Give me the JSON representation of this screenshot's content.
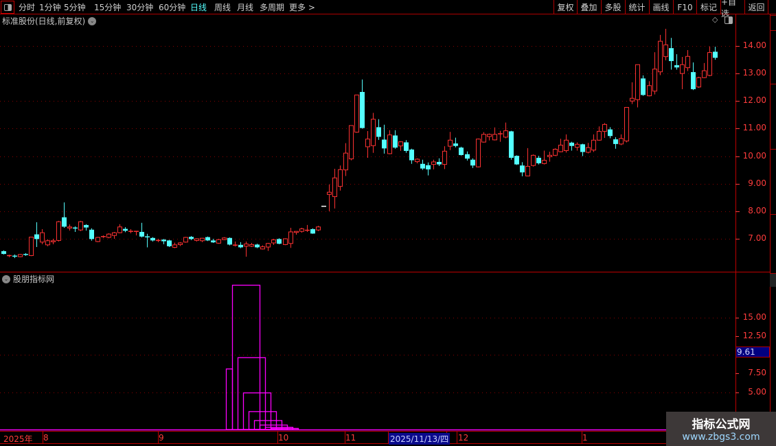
{
  "toolbar": {
    "periods": [
      "分时",
      "1分钟",
      "5分钟",
      "15分钟",
      "30分钟",
      "60分钟",
      "日线",
      "周线",
      "月线",
      "多周期",
      "更多 >"
    ],
    "active_period": "日线",
    "buttons": [
      "复权",
      "叠加",
      "多股",
      "统计",
      "画线",
      "F10",
      "标记",
      "+自选",
      "返回"
    ]
  },
  "main_panel": {
    "title": "标准股份(日线,前复权)",
    "price_ticks": [
      "14.00",
      "13.00",
      "12.00",
      "11.00",
      "10.00",
      "9.00",
      "8.00",
      "7.00"
    ]
  },
  "sub_panel": {
    "title": "股朋指标网",
    "ticks": [
      "15.00",
      "12.50",
      "7.50",
      "5.00"
    ],
    "current_value": "9.61"
  },
  "date_axis": {
    "labels": [
      "2025年",
      "8",
      "9",
      "10",
      "11",
      "12",
      "1"
    ],
    "highlight": "2025/11/13/四"
  },
  "watermark": {
    "line1": "指标公式网",
    "line2": "www.zbgs3.com"
  },
  "colors": {
    "up": "#ff3232",
    "down": "#54ffff",
    "indicator": "#ff00ff",
    "grid": "#8b0000",
    "axis": "#ff3c3c"
  },
  "chart_data": {
    "type": "candlestick",
    "ylim": [
      6.2,
      14.85
    ],
    "ohlc": [
      [
        6.55,
        6.58,
        6.43,
        6.45
      ],
      [
        6.37,
        6.42,
        6.33,
        6.39
      ],
      [
        6.37,
        6.43,
        6.3,
        6.36
      ],
      [
        6.35,
        6.45,
        6.33,
        6.43
      ],
      [
        6.43,
        6.48,
        6.38,
        6.42
      ],
      [
        6.39,
        7.06,
        6.37,
        7.06
      ],
      [
        7.16,
        7.6,
        6.7,
        6.99
      ],
      [
        6.88,
        7.35,
        6.8,
        7.22
      ],
      [
        6.78,
        6.98,
        6.73,
        6.93
      ],
      [
        6.89,
        7.0,
        6.8,
        6.93
      ],
      [
        6.94,
        7.65,
        6.9,
        7.62
      ],
      [
        7.78,
        8.32,
        7.4,
        7.44
      ],
      [
        7.39,
        7.52,
        7.3,
        7.43
      ],
      [
        7.39,
        7.45,
        7.25,
        7.37
      ],
      [
        7.32,
        7.65,
        7.28,
        7.62
      ],
      [
        7.5,
        7.53,
        7.3,
        7.41
      ],
      [
        7.33,
        7.38,
        6.93,
        6.99
      ],
      [
        6.9,
        7.07,
        6.88,
        7.05
      ],
      [
        7.07,
        7.12,
        7.03,
        7.08
      ],
      [
        7.05,
        7.2,
        7.02,
        7.17
      ],
      [
        7.12,
        7.25,
        7.0,
        7.22
      ],
      [
        7.22,
        7.53,
        7.2,
        7.43
      ],
      [
        7.36,
        7.42,
        7.24,
        7.29
      ],
      [
        7.27,
        7.35,
        7.2,
        7.27
      ],
      [
        7.26,
        7.28,
        7.12,
        7.27
      ],
      [
        7.25,
        7.58,
        7.05,
        7.08
      ],
      [
        7.07,
        7.18,
        6.69,
        7.06
      ],
      [
        7.03,
        7.06,
        6.9,
        6.94
      ],
      [
        6.93,
        7.0,
        6.88,
        6.94
      ],
      [
        6.97,
        6.99,
        6.8,
        6.91
      ],
      [
        6.94,
        6.96,
        6.7,
        6.73
      ],
      [
        6.69,
        6.86,
        6.66,
        6.78
      ],
      [
        6.79,
        6.88,
        6.74,
        6.85
      ],
      [
        6.88,
        7.07,
        6.86,
        7.05
      ],
      [
        7.07,
        7.1,
        6.95,
        6.99
      ],
      [
        6.94,
        7.02,
        6.9,
        7.0
      ],
      [
        6.93,
        7.03,
        6.88,
        7.02
      ],
      [
        7.06,
        7.08,
        6.92,
        6.94
      ],
      [
        6.94,
        7.0,
        6.85,
        6.87
      ],
      [
        6.84,
        7.0,
        6.82,
        6.97
      ],
      [
        6.97,
        7.06,
        6.95,
        7.03
      ],
      [
        7.03,
        7.05,
        6.76,
        6.79
      ],
      [
        6.77,
        6.9,
        6.72,
        6.77
      ],
      [
        6.78,
        6.88,
        6.66,
        6.69
      ],
      [
        6.73,
        6.9,
        6.35,
        6.81
      ],
      [
        6.73,
        6.85,
        6.7,
        6.79
      ],
      [
        6.79,
        6.82,
        6.66,
        6.69
      ],
      [
        6.63,
        6.76,
        6.61,
        6.71
      ],
      [
        6.7,
        6.85,
        6.56,
        6.83
      ],
      [
        6.85,
        7.0,
        6.78,
        6.96
      ],
      [
        6.99,
        7.02,
        6.8,
        6.82
      ],
      [
        6.79,
        7.02,
        6.77,
        7.0
      ],
      [
        6.83,
        7.4,
        6.67,
        7.25
      ],
      [
        7.23,
        7.27,
        7.15,
        7.27
      ],
      [
        7.27,
        7.4,
        7.22,
        7.36
      ],
      [
        7.29,
        7.5,
        7.25,
        7.31
      ],
      [
        7.35,
        7.38,
        7.18,
        7.19
      ],
      [
        7.32,
        7.47,
        7.28,
        7.43
      ],
      [
        8.18,
        8.18,
        8.18,
        8.18
      ],
      [
        8.61,
        8.97,
        8.0,
        8.69
      ],
      [
        8.53,
        9.54,
        8.1,
        9.21
      ],
      [
        8.9,
        9.66,
        8.75,
        9.51
      ],
      [
        9.5,
        10.47,
        9.28,
        10.11
      ],
      [
        9.9,
        11.11,
        9.85,
        11.11
      ],
      [
        10.87,
        12.22,
        10.85,
        12.22
      ],
      [
        12.33,
        12.78,
        11.0,
        11.02
      ],
      [
        10.34,
        10.91,
        9.94,
        10.62
      ],
      [
        10.38,
        11.57,
        10.12,
        11.34
      ],
      [
        11.05,
        11.34,
        10.59,
        10.7
      ],
      [
        10.6,
        11.14,
        10.09,
        10.28
      ],
      [
        10.09,
        10.94,
        10.07,
        10.77
      ],
      [
        10.75,
        10.94,
        10.27,
        10.31
      ],
      [
        10.37,
        10.54,
        10.19,
        10.52
      ],
      [
        10.5,
        10.58,
        10.12,
        10.19
      ],
      [
        10.24,
        10.27,
        9.72,
        9.85
      ],
      [
        9.8,
        9.92,
        9.74,
        9.89
      ],
      [
        9.72,
        9.87,
        9.5,
        9.55
      ],
      [
        9.67,
        9.77,
        9.3,
        9.52
      ],
      [
        9.7,
        9.87,
        9.52,
        9.79
      ],
      [
        9.79,
        9.92,
        9.64,
        9.7
      ],
      [
        9.7,
        10.36,
        9.53,
        10.18
      ],
      [
        10.36,
        10.88,
        10.22,
        10.58
      ],
      [
        10.46,
        10.67,
        10.32,
        10.37
      ],
      [
        10.31,
        10.34,
        10.02,
        10.04
      ],
      [
        10.07,
        10.17,
        9.84,
        9.91
      ],
      [
        9.87,
        9.92,
        9.57,
        9.66
      ],
      [
        9.61,
        10.64,
        9.59,
        10.62
      ],
      [
        10.51,
        10.87,
        10.49,
        10.79
      ],
      [
        10.71,
        10.82,
        10.57,
        10.79
      ],
      [
        10.59,
        11.04,
        10.57,
        10.79
      ],
      [
        10.81,
        10.92,
        10.52,
        10.81
      ],
      [
        10.69,
        11.22,
        10.65,
        10.92
      ],
      [
        10.9,
        10.92,
        9.87,
        9.94
      ],
      [
        10.01,
        10.03,
        9.68,
        9.7
      ],
      [
        9.66,
        9.78,
        9.27,
        9.41
      ],
      [
        9.28,
        10.29,
        9.27,
        9.63
      ],
      [
        9.66,
        10.06,
        9.62,
        10.03
      ],
      [
        9.94,
        10.01,
        9.7,
        9.74
      ],
      [
        9.73,
        10.2,
        9.7,
        9.85
      ],
      [
        9.98,
        10.16,
        9.8,
        10.03
      ],
      [
        10.03,
        10.28,
        10.0,
        10.25
      ],
      [
        10.16,
        10.63,
        10.14,
        10.4
      ],
      [
        10.2,
        10.79,
        10.13,
        10.58
      ],
      [
        10.49,
        10.52,
        10.2,
        10.37
      ],
      [
        10.32,
        10.5,
        10.2,
        10.43
      ],
      [
        10.43,
        10.45,
        10.0,
        10.15
      ],
      [
        10.14,
        10.48,
        10.1,
        10.31
      ],
      [
        10.22,
        10.79,
        10.15,
        10.58
      ],
      [
        10.58,
        11.08,
        10.56,
        10.9
      ],
      [
        10.9,
        11.2,
        10.66,
        11.15
      ],
      [
        10.97,
        11.05,
        10.65,
        10.73
      ],
      [
        10.61,
        10.69,
        10.27,
        10.44
      ],
      [
        10.44,
        10.79,
        10.4,
        10.64
      ],
      [
        10.55,
        11.77,
        10.5,
        11.77
      ],
      [
        12.0,
        12.68,
        11.89,
        12.1
      ],
      [
        12.05,
        13.32,
        11.77,
        13.32
      ],
      [
        12.82,
        12.93,
        12.19,
        12.22
      ],
      [
        12.19,
        12.72,
        12.17,
        12.56
      ],
      [
        12.36,
        13.77,
        12.24,
        13.16
      ],
      [
        13.06,
        14.4,
        12.94,
        14.17
      ],
      [
        13.61,
        14.62,
        13.48,
        14.04
      ],
      [
        13.92,
        14.29,
        13.14,
        13.45
      ],
      [
        13.3,
        13.7,
        13.14,
        13.22
      ],
      [
        13.0,
        13.6,
        12.43,
        13.32
      ],
      [
        13.21,
        13.85,
        13.09,
        13.62
      ],
      [
        13.05,
        13.4,
        12.4,
        12.43
      ],
      [
        12.51,
        12.88,
        12.48,
        12.85
      ],
      [
        12.85,
        13.38,
        12.83,
        13.1
      ],
      [
        12.93,
        13.98,
        12.9,
        13.76
      ],
      [
        13.79,
        13.97,
        13.5,
        13.57
      ]
    ],
    "indicator": {
      "type": "bar",
      "values": [
        8.1,
        19.3,
        9.61,
        4.9,
        2.4,
        1.2,
        0.6,
        0.3,
        0.15
      ],
      "ylim": [
        0,
        21
      ],
      "gridlines": [
        5,
        10,
        15
      ]
    }
  }
}
